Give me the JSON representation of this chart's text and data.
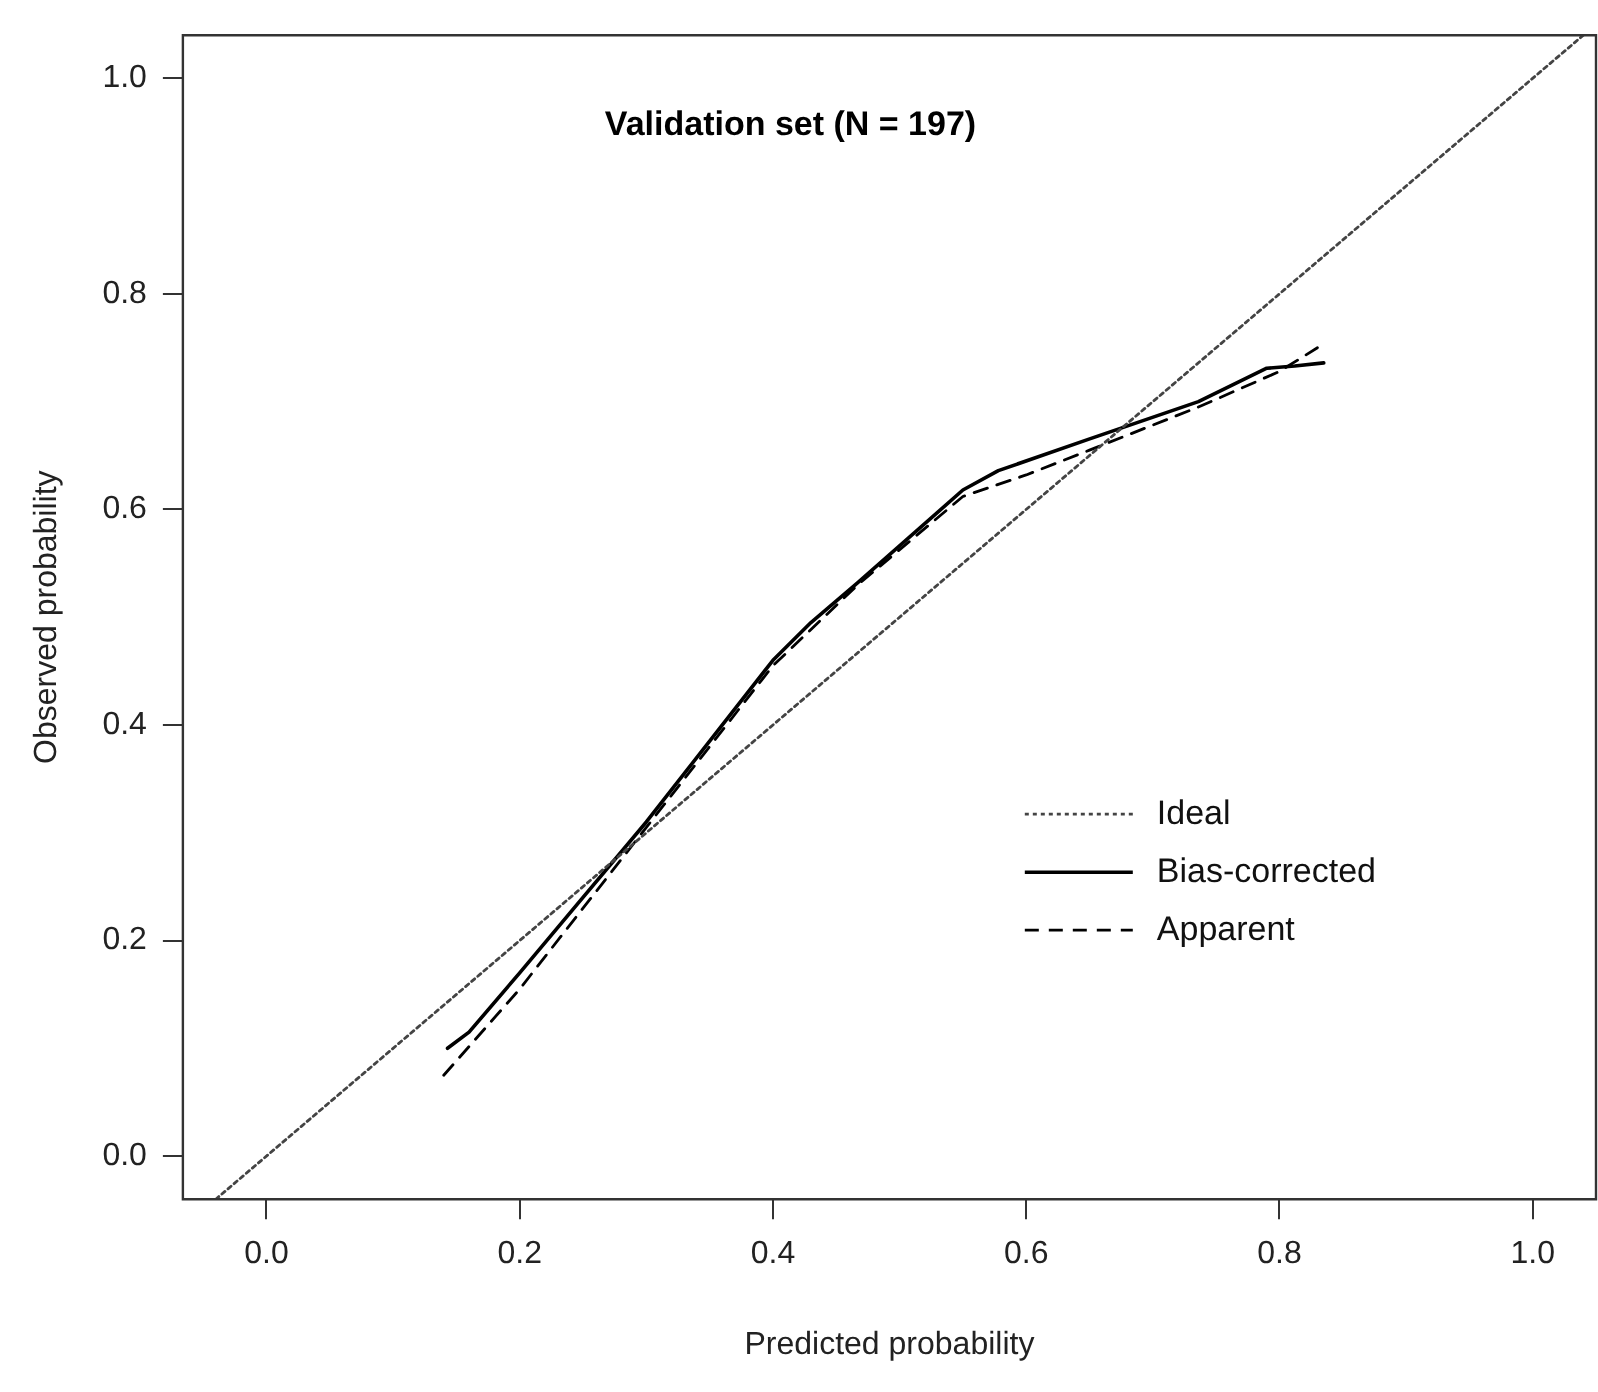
{
  "chart_data": {
    "type": "line",
    "title": "Validation set (N = 197)",
    "xlabel": "Predicted probability",
    "ylabel": "Observed probability",
    "xlim": [
      -0.066,
      1.05
    ],
    "ylim": [
      -0.04,
      1.04
    ],
    "xticks": [
      {
        "value": 0,
        "label": "0.0"
      },
      0.2,
      0.4,
      0.6,
      0.8,
      {
        "value": 1,
        "label": "1.0"
      }
    ],
    "yticks": [
      {
        "value": 0,
        "label": "0.0"
      },
      0.2,
      0.4,
      0.6,
      0.8,
      {
        "value": 1,
        "label": "1.0"
      }
    ],
    "grid": false,
    "legend": "bottom right",
    "marker": "none",
    "series": [
      {
        "name": "Ideal",
        "color": "#444444",
        "line_style": "dotted",
        "x": [
          -0.04,
          1.04
        ],
        "values": [
          -0.04,
          1.04
        ]
      },
      {
        "name": "Bias-corrected",
        "color": "#000000",
        "line_style": "solid",
        "x": [
          0.143,
          0.16,
          0.2,
          0.25,
          0.3,
          0.35,
          0.4,
          0.43,
          0.467,
          0.55,
          0.578,
          0.649,
          0.736,
          0.79,
          0.812,
          0.835
        ],
        "values": [
          0.1,
          0.115,
          0.17,
          0.24,
          0.31,
          0.385,
          0.46,
          0.495,
          0.532,
          0.618,
          0.636,
          0.665,
          0.7,
          0.731,
          0.733,
          0.736
        ]
      },
      {
        "name": "Apparent",
        "color": "#000000",
        "line_style": "dashed",
        "x": [
          0.14,
          0.2,
          0.25,
          0.3,
          0.35,
          0.4,
          0.467,
          0.55,
          0.6,
          0.65,
          0.736,
          0.8,
          0.83
        ],
        "values": [
          0.075,
          0.155,
          0.23,
          0.305,
          0.38,
          0.455,
          0.53,
          0.612,
          0.632,
          0.655,
          0.695,
          0.728,
          0.75
        ]
      }
    ]
  }
}
